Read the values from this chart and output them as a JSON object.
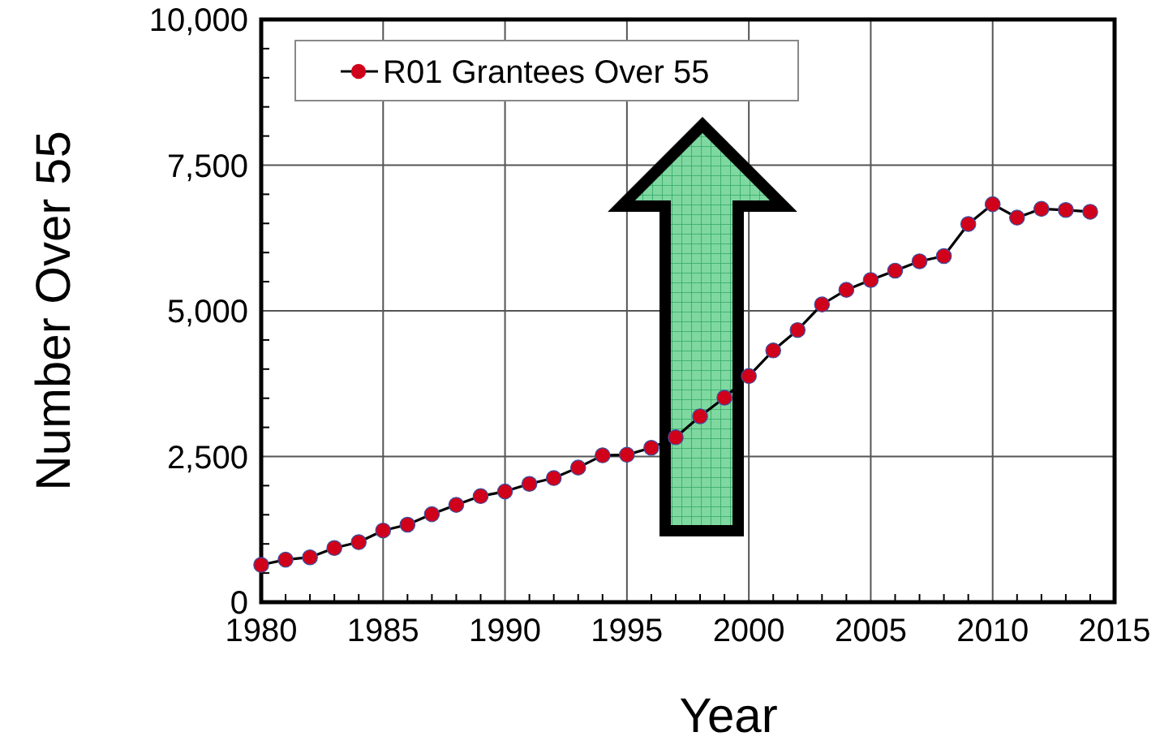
{
  "chart_data": {
    "type": "line",
    "xlabel": "Year",
    "ylabel": "Number Over 55",
    "x": [
      1980,
      1981,
      1982,
      1983,
      1984,
      1985,
      1986,
      1987,
      1988,
      1989,
      1990,
      1991,
      1992,
      1993,
      1994,
      1995,
      1996,
      1997,
      1998,
      1999,
      2000,
      2001,
      2002,
      2003,
      2004,
      2005,
      2006,
      2007,
      2008,
      2009,
      2010,
      2011,
      2012,
      2013,
      2014
    ],
    "series": [
      {
        "name": "R01 Grantees Over 55",
        "color": "#d0021b",
        "values": [
          640,
          730,
          770,
          930,
          1030,
          1230,
          1330,
          1510,
          1670,
          1820,
          1900,
          2030,
          2130,
          2310,
          2520,
          2530,
          2650,
          2830,
          3190,
          3510,
          3880,
          4320,
          4670,
          5110,
          5360,
          5530,
          5690,
          5850,
          5940,
          6490,
          6830,
          6600,
          6750,
          6730,
          6700
        ]
      }
    ],
    "xlim": [
      1980,
      2015
    ],
    "xticks": [
      1980,
      1985,
      1990,
      1995,
      2000,
      2005,
      2010,
      2015
    ],
    "ylim": [
      0,
      10000
    ],
    "yticks": [
      0,
      {
        "value": 2500,
        "label": "2,500"
      },
      {
        "value": 5000,
        "label": "5,000"
      },
      {
        "value": 7500,
        "label": "7,500"
      },
      {
        "value": 10000,
        "label": "10,000"
      }
    ],
    "grid": true,
    "legend": "top left",
    "marker": "circle",
    "line_style": "solid"
  }
}
